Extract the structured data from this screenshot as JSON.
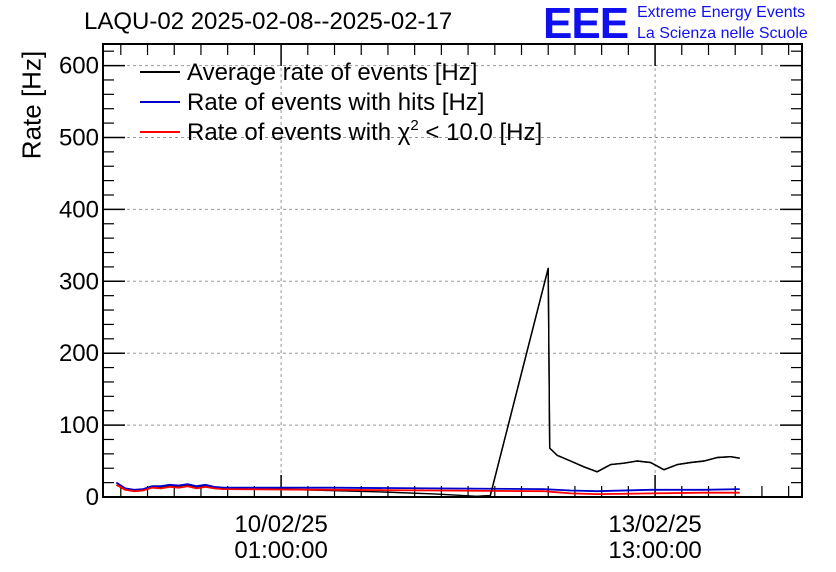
{
  "header": {
    "title": "LAQU-02 2025-02-08--2025-02-17",
    "logo_text": "EEE",
    "logo_line1": "Extreme Energy Events",
    "logo_line2": "La Scienza nelle Scuole",
    "logo_color": "#1010ee"
  },
  "chart_data": {
    "type": "line",
    "title": "LAQU-02 2025-02-08--2025-02-17",
    "ylabel": "Rate [Hz]",
    "xlabel": "",
    "ylim": [
      0,
      630
    ],
    "xlim": [
      "2025-02-08T09:00",
      "2025-02-14T22:00"
    ],
    "y_ticks": [
      0,
      100,
      200,
      300,
      400,
      500,
      600
    ],
    "x_ticks": [
      {
        "t": "2025-02-10T01:00",
        "line1": "10/02/25",
        "line2": "01:00:00"
      },
      {
        "t": "2025-02-13T13:00",
        "line1": "13/02/25",
        "line2": "13:00:00"
      }
    ],
    "grid": true,
    "legend_position": "top-left",
    "legend": [
      {
        "text": "Average rate of events [Hz]",
        "color": "#000000"
      },
      {
        "text": "Rate of events with hits [Hz]",
        "color": "#0000cc"
      },
      {
        "text_pre": "Rate of events with ",
        "chi": "χ",
        "sup": "2",
        "text_post": " < 10.0 [Hz]",
        "color": "#ff0000"
      }
    ],
    "series": [
      {
        "name": "Average rate of events [Hz]",
        "color": "#000000",
        "points": [
          [
            "2025-02-08T12:00",
            20
          ],
          [
            "2025-02-08T14:00",
            12
          ],
          [
            "2025-02-08T16:00",
            9
          ],
          [
            "2025-02-08T18:00",
            10
          ],
          [
            "2025-02-08T20:00",
            15
          ],
          [
            "2025-02-08T22:00",
            14
          ],
          [
            "2025-02-09T00:00",
            16
          ],
          [
            "2025-02-09T02:00",
            15
          ],
          [
            "2025-02-09T04:00",
            17
          ],
          [
            "2025-02-09T06:00",
            14
          ],
          [
            "2025-02-09T08:00",
            16
          ],
          [
            "2025-02-09T10:00",
            14
          ],
          [
            "2025-02-09T12:00",
            12
          ],
          [
            "2025-02-10T00:00",
            11
          ],
          [
            "2025-02-10T12:00",
            9
          ],
          [
            "2025-02-11T00:00",
            7
          ],
          [
            "2025-02-11T12:00",
            4
          ],
          [
            "2025-02-11T21:00",
            1
          ],
          [
            "2025-02-12T00:00",
            2
          ],
          [
            "2025-02-12T13:00",
            318
          ],
          [
            "2025-02-12T13:20",
            68
          ],
          [
            "2025-02-12T15:00",
            58
          ],
          [
            "2025-02-12T18:00",
            50
          ],
          [
            "2025-02-12T21:00",
            42
          ],
          [
            "2025-02-13T00:00",
            35
          ],
          [
            "2025-02-13T03:00",
            45
          ],
          [
            "2025-02-13T06:00",
            47
          ],
          [
            "2025-02-13T09:00",
            50
          ],
          [
            "2025-02-13T12:00",
            48
          ],
          [
            "2025-02-13T15:00",
            38
          ],
          [
            "2025-02-13T18:00",
            45
          ],
          [
            "2025-02-13T21:00",
            48
          ],
          [
            "2025-02-14T00:00",
            50
          ],
          [
            "2025-02-14T03:00",
            55
          ],
          [
            "2025-02-14T06:00",
            56
          ],
          [
            "2025-02-14T08:00",
            54
          ]
        ]
      },
      {
        "name": "Rate of events with hits [Hz]",
        "color": "#0000cc",
        "points": [
          [
            "2025-02-08T12:00",
            20
          ],
          [
            "2025-02-08T14:00",
            12
          ],
          [
            "2025-02-08T16:00",
            10
          ],
          [
            "2025-02-08T18:00",
            11
          ],
          [
            "2025-02-08T20:00",
            15
          ],
          [
            "2025-02-08T22:00",
            15
          ],
          [
            "2025-02-09T00:00",
            17
          ],
          [
            "2025-02-09T02:00",
            16
          ],
          [
            "2025-02-09T04:00",
            18
          ],
          [
            "2025-02-09T06:00",
            15
          ],
          [
            "2025-02-09T08:00",
            17
          ],
          [
            "2025-02-09T10:00",
            14
          ],
          [
            "2025-02-09T12:00",
            13
          ],
          [
            "2025-02-10T12:00",
            13
          ],
          [
            "2025-02-11T12:00",
            12
          ],
          [
            "2025-02-12T12:00",
            11
          ],
          [
            "2025-02-12T18:00",
            9
          ],
          [
            "2025-02-13T00:00",
            8
          ],
          [
            "2025-02-13T12:00",
            10
          ],
          [
            "2025-02-14T00:00",
            10
          ],
          [
            "2025-02-14T08:00",
            11
          ]
        ]
      },
      {
        "name": "Rate of events with χ2 < 10.0 [Hz]",
        "color": "#ff0000",
        "points": [
          [
            "2025-02-08T12:00",
            17
          ],
          [
            "2025-02-08T14:00",
            10
          ],
          [
            "2025-02-08T16:00",
            8
          ],
          [
            "2025-02-08T18:00",
            9
          ],
          [
            "2025-02-08T20:00",
            13
          ],
          [
            "2025-02-08T22:00",
            12
          ],
          [
            "2025-02-09T00:00",
            14
          ],
          [
            "2025-02-09T02:00",
            13
          ],
          [
            "2025-02-09T04:00",
            15
          ],
          [
            "2025-02-09T06:00",
            12
          ],
          [
            "2025-02-09T08:00",
            14
          ],
          [
            "2025-02-09T10:00",
            12
          ],
          [
            "2025-02-09T12:00",
            11
          ],
          [
            "2025-02-10T12:00",
            10
          ],
          [
            "2025-02-11T12:00",
            9
          ],
          [
            "2025-02-12T12:00",
            8
          ],
          [
            "2025-02-12T18:00",
            5
          ],
          [
            "2025-02-13T00:00",
            4
          ],
          [
            "2025-02-13T12:00",
            5
          ],
          [
            "2025-02-14T00:00",
            6
          ],
          [
            "2025-02-14T08:00",
            6
          ]
        ]
      }
    ]
  }
}
